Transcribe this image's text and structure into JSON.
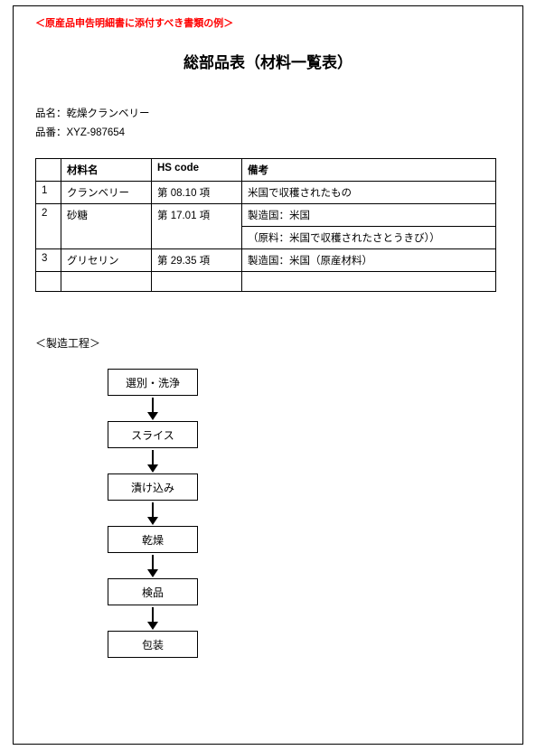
{
  "header_note": "＜原産品申告明細書に添付すべき書類の例＞",
  "title": "総部品表（材料一覧表）",
  "product": {
    "name_label": "品名：",
    "name_value": "乾燥クランベリー",
    "code_label": "品番：",
    "code_value": "XYZ-987654"
  },
  "table": {
    "headers": {
      "idx": "",
      "name": "材料名",
      "hs": "HS code",
      "note": "備考"
    },
    "rows": [
      {
        "idx": "1",
        "name": "クランベリー",
        "hs": "第 08.10 項",
        "note": "米国で収穫されたもの"
      },
      {
        "idx": "2",
        "name": "砂糖",
        "hs": "第 17.01 項",
        "note": "製造国：米国\n（原料：米国で収穫されたさとうきび））"
      },
      {
        "idx": "3",
        "name": "グリセリン",
        "hs": "第 29.35 項",
        "note": "製造国：米国（原産材料）"
      },
      {
        "idx": "",
        "name": "",
        "hs": "",
        "note": ""
      }
    ]
  },
  "process": {
    "label": "＜製造工程＞",
    "steps": [
      "選別・洗浄",
      "スライス",
      "漬け込み",
      "乾燥",
      "検品",
      "包装"
    ]
  },
  "colors": {
    "header_note": "#ff0000",
    "border": "#000000",
    "text": "#000000",
    "background": "#ffffff"
  }
}
